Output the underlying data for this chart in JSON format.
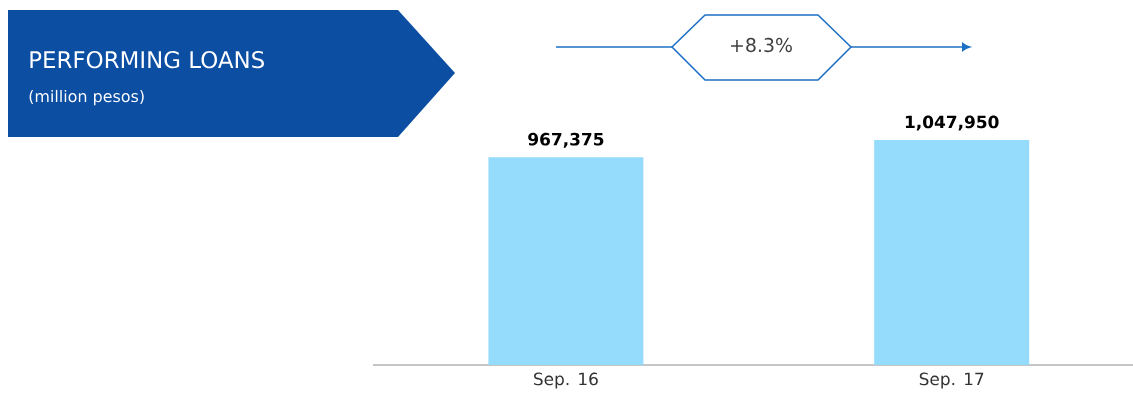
{
  "chart_data": {
    "type": "bar",
    "title": "PERFORMING LOANS",
    "subtitle": "(million pesos)",
    "categories": [
      "Sep. 16",
      "Sep. 17"
    ],
    "values": [
      967375,
      1047950
    ],
    "value_labels": [
      "967,375",
      "1,047,950"
    ],
    "color": "#94dbfc",
    "grid": false,
    "tick_labels": "x",
    "annotations": [
      "+8.3%"
    ]
  }
}
